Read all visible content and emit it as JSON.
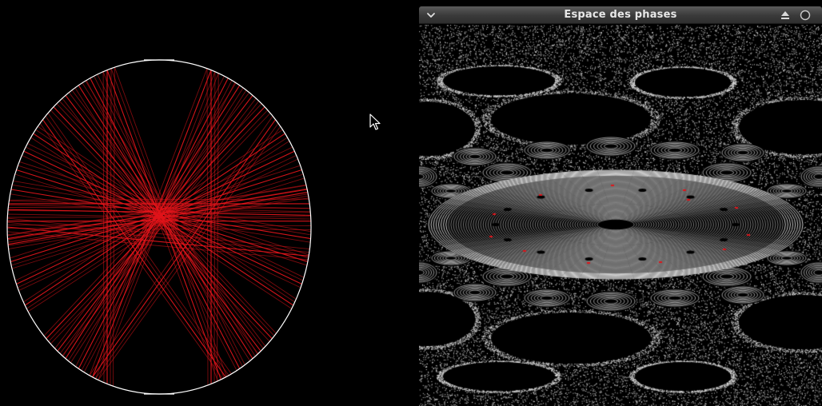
{
  "phase_window": {
    "title": "Espace des phases",
    "icons": {
      "menu": "chevron-down-icon",
      "eject": "eject-icon",
      "close": "circle-close-icon"
    }
  },
  "colors": {
    "background": "#000000",
    "boundary": "#ffffff",
    "trajectory": "#e0141a",
    "phase_orbits": "#d8d8d8",
    "phase_marker": "#e0141a",
    "titlebar": "#3a3a3a"
  },
  "cursor": {
    "icon": "mouse-pointer-icon"
  }
}
